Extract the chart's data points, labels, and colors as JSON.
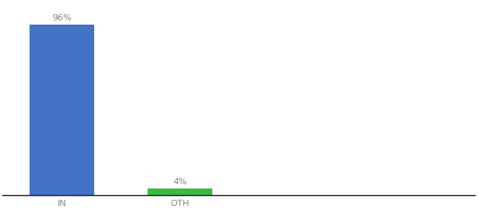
{
  "categories": [
    "IN",
    "OTH"
  ],
  "values": [
    96,
    4
  ],
  "bar_colors": [
    "#4472c4",
    "#3cb943"
  ],
  "label_texts": [
    "96%",
    "4%"
  ],
  "background_color": "#ffffff",
  "ylim": [
    0,
    108
  ],
  "bar_width": 0.55,
  "figsize": [
    6.8,
    3.0
  ],
  "dpi": 100,
  "label_fontsize": 9,
  "tick_fontsize": 9,
  "tick_color": "#888888",
  "spine_color": "#222222",
  "x_positions": [
    0,
    1
  ],
  "xlim": [
    -0.5,
    3.5
  ]
}
